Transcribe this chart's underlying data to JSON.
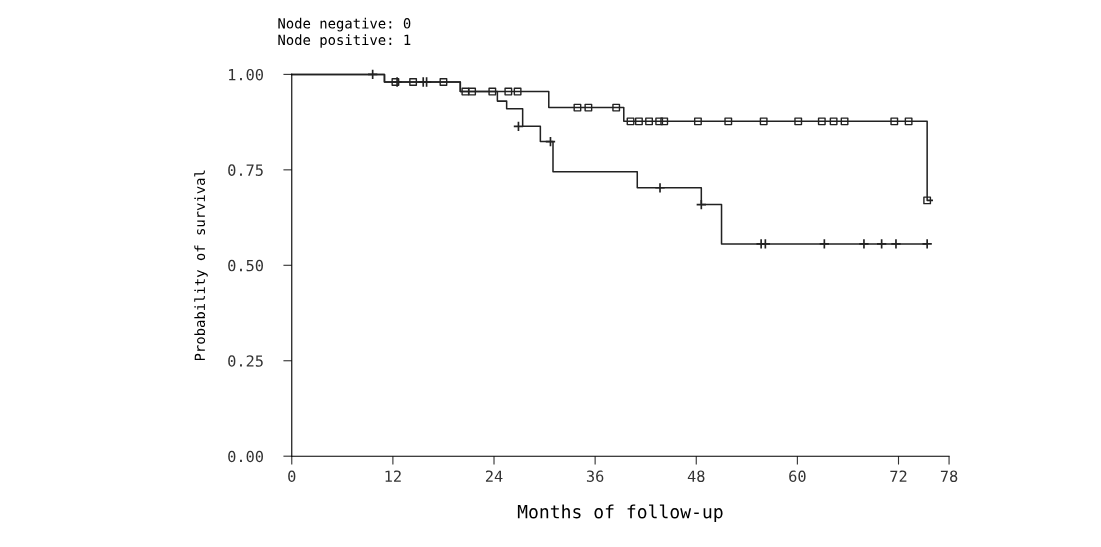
{
  "chart_data": {
    "type": "step",
    "xlabel": "Months of follow-up",
    "ylabel": "Probability of survival",
    "annotations": [
      "Node negative: 0",
      "Node positive: 1"
    ],
    "xlim": [
      0,
      78
    ],
    "xticks": [
      0,
      12,
      24,
      36,
      48,
      60,
      72,
      78
    ],
    "ylim": [
      0,
      1
    ],
    "yticks": [
      {
        "value": 0,
        "label": "0.00"
      },
      {
        "value": 0.25,
        "label": "0.25"
      },
      {
        "value": 0.5,
        "label": "0.50"
      },
      {
        "value": 0.75,
        "label": "0.75"
      },
      {
        "value": 1,
        "label": "1.00"
      }
    ],
    "grid": false,
    "legend": false,
    "line_style": "solid",
    "series": [
      {
        "color": "#222222",
        "x": [
          0,
          11,
          20,
          30.5,
          39.4,
          75.4,
          76
        ],
        "values": [
          1.0,
          0.98,
          0.955,
          0.913,
          0.877,
          0.67,
          0.67
        ]
      },
      {
        "color": "#222222",
        "x": [
          0,
          11,
          20,
          24.4,
          25.5,
          27.4,
          29.5,
          31,
          41,
          48.6,
          51,
          75.4
        ],
        "values": [
          1.0,
          0.98,
          0.955,
          0.93,
          0.91,
          0.864,
          0.824,
          0.745,
          0.703,
          0.659,
          0.556,
          0.556
        ]
      },
      {
        "type": "scatter",
        "marker": "square",
        "color": "#222222",
        "x": [
          12.3,
          14.4,
          18,
          20.6,
          21.4,
          23.8,
          25.7,
          26.8,
          33.9,
          35.2,
          38.5,
          40.2,
          41.2,
          42.4,
          43.6,
          44.2,
          48.2,
          51.8,
          56,
          60.1,
          62.9,
          64.3,
          65.6,
          71.5,
          73.2,
          75.4
        ],
        "values": [
          0.98,
          0.98,
          0.98,
          0.955,
          0.955,
          0.955,
          0.955,
          0.955,
          0.913,
          0.913,
          0.913,
          0.877,
          0.877,
          0.877,
          0.877,
          0.877,
          0.877,
          0.877,
          0.877,
          0.877,
          0.877,
          0.877,
          0.877,
          0.877,
          0.877,
          0.67
        ]
      },
      {
        "type": "scatter",
        "marker": "cross",
        "color": "#222222",
        "x": [
          9.6,
          12.5,
          15.6,
          16,
          26.9,
          30.7,
          43.7,
          48.6,
          55.7,
          56.2,
          63.2,
          67.9,
          70,
          71.7,
          75.4
        ],
        "values": [
          1.0,
          0.98,
          0.98,
          0.98,
          0.864,
          0.824,
          0.703,
          0.659,
          0.556,
          0.556,
          0.556,
          0.556,
          0.556,
          0.556,
          0.556
        ]
      }
    ]
  }
}
